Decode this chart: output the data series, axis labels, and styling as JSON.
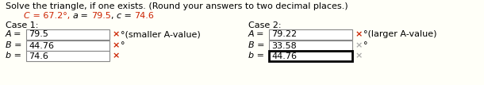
{
  "title1": "Solve the triangle, if one exists. (Round your answers to two decimal places.)",
  "title2_C": "C",
  "title2_eq1": " = 67.2°, ",
  "title2_a": "a",
  "title2_eq2": " = ",
  "title2_79": "79.5",
  "title2_comma": ", ",
  "title2_c": "c",
  "title2_eq3": " = ",
  "title2_74": "74.6",
  "case1_label": "Case 1:",
  "case2_label": "Case 2:",
  "c1_A_val": "79.5",
  "c1_B_val": "44.76",
  "c1_b_val": "74.6",
  "c2_A_val": "79.22",
  "c2_B_val": "33.58",
  "c2_b_val": "44.76",
  "annot_A1": "°(smaller A-value)",
  "annot_A2": "°(larger A-value)",
  "annot_B": "°",
  "bg": "#fffff8",
  "black": "#000000",
  "red": "#cc2200",
  "gray": "#aaaaaa",
  "box_edge_gray": "#888888",
  "box_edge_black": "#000000",
  "white": "#ffffff",
  "fs": 8.0
}
